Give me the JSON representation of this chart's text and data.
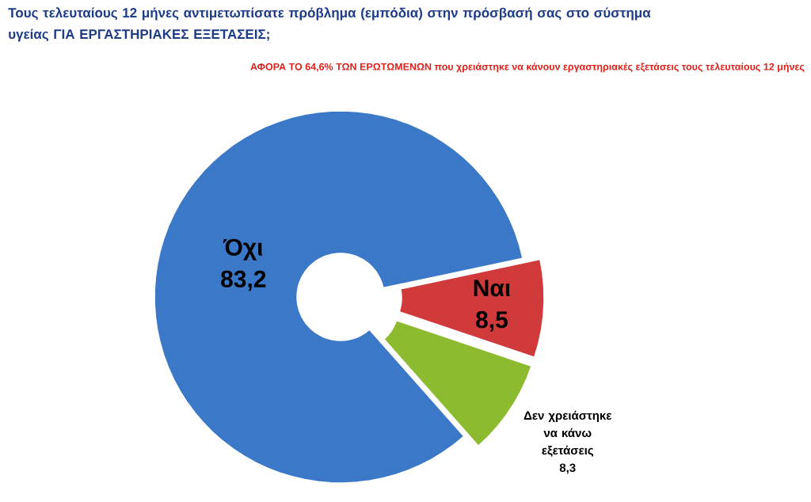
{
  "chart_data": {
    "type": "donut",
    "title": "Τους τελευταίους 12 μήνες αντιμετωπίσατε πρόβλημα (εμπόδια) στην πρόσβασή σας στο σύστημα υγείας ΓΙΑ ΕΡΓΑΣΤΗΡΙΑΚΕΣ ΕΞΕΤΑΣΕΙΣ;",
    "subtitle": "ΑΦΟΡΑ ΤΟ 64,6% ΤΩΝ ΕΡΩΤΩΜΕΝΩΝ που χρειάστηκε να κάνουν εργαστηριακές εξετάσεις τους τελευταίους 12 μήνες",
    "categories": [
      "Όχι",
      "Ναι",
      "Δεν χρειάστηκε να κάνω εξετάσεις"
    ],
    "values": [
      83.2,
      8.5,
      8.3
    ],
    "colors": [
      "#3b78c8",
      "#d03a3a",
      "#8dbb2f"
    ],
    "value_labels": [
      "83,2",
      "8,5",
      "8,3"
    ]
  }
}
